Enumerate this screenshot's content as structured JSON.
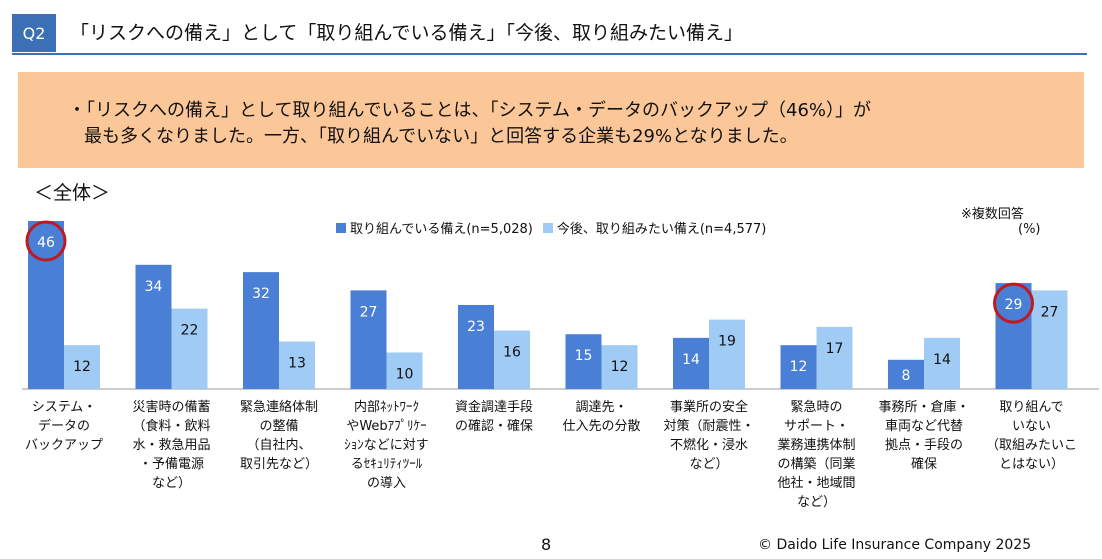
{
  "header": {
    "badge": "Q2",
    "title": "「リスクへの備え」として「取り組んでいる備え」「今後、取り組みたい備え」"
  },
  "summary": {
    "line1": "・「リスクへの備え」として取り組んでいることは、「システム・データのバックアップ（46%）」が",
    "line2": "最も多くなりました。一方、「取り組んでいない」と回答する企業も29%となりました。"
  },
  "scope_label": "＜全体＞",
  "note": {
    "multiple": "※複数回答",
    "unit": "(%)"
  },
  "colors": {
    "current": "#4a7fd6",
    "future": "#9fcbf4",
    "highlight": "#c01a20",
    "header": "#3b6fb6",
    "summary_bg": "#fbc798"
  },
  "chart_data": {
    "type": "bar",
    "ylim": [
      0,
      50
    ],
    "categories": [
      [
        "システム・",
        "データの",
        "バックアップ"
      ],
      [
        "災害時の備蓄",
        "（食料・飲料",
        "水・救急用品",
        "・予備電源",
        "など）"
      ],
      [
        "緊急連絡体制",
        "の整備",
        "（自社内、",
        "取引先など）"
      ],
      [
        "内部ﾈｯﾄﾜｰｸ",
        "やWebｱﾌﾟﾘｹｰ",
        "ｼｮﾝなどに対す",
        "るｾｷｭﾘﾃｨﾂｰﾙ",
        "の導入"
      ],
      [
        "資金調達手段",
        "の確認・確保"
      ],
      [
        "調達先・",
        "仕入先の分散"
      ],
      [
        "事業所の安全",
        "対策（耐震性・",
        "不燃化・浸水",
        "など）"
      ],
      [
        "緊急時の",
        "サポート・",
        "業務連携体制",
        "の構築（同業",
        "他社・地域間",
        "など）"
      ],
      [
        "事務所・倉庫・",
        "車両など代替",
        "拠点・手段の",
        "確保"
      ],
      [
        "取り組んで",
        "いない",
        "（取組みたいこ",
        "とはない）"
      ]
    ],
    "series": [
      {
        "name": "取り組んでいる備え(n=5,028)",
        "values": [
          46,
          34,
          32,
          27,
          23,
          15,
          14,
          12,
          8,
          29
        ]
      },
      {
        "name": "今後、取り組みたい備え(n=4,577)",
        "values": [
          12,
          22,
          13,
          10,
          16,
          12,
          19,
          17,
          14,
          27
        ]
      }
    ],
    "highlighted_points": [
      {
        "series": 0,
        "index": 0
      },
      {
        "series": 0,
        "index": 9
      }
    ]
  },
  "footer": {
    "page": "8",
    "copyright": "© Daido Life Insurance Company 2025"
  }
}
